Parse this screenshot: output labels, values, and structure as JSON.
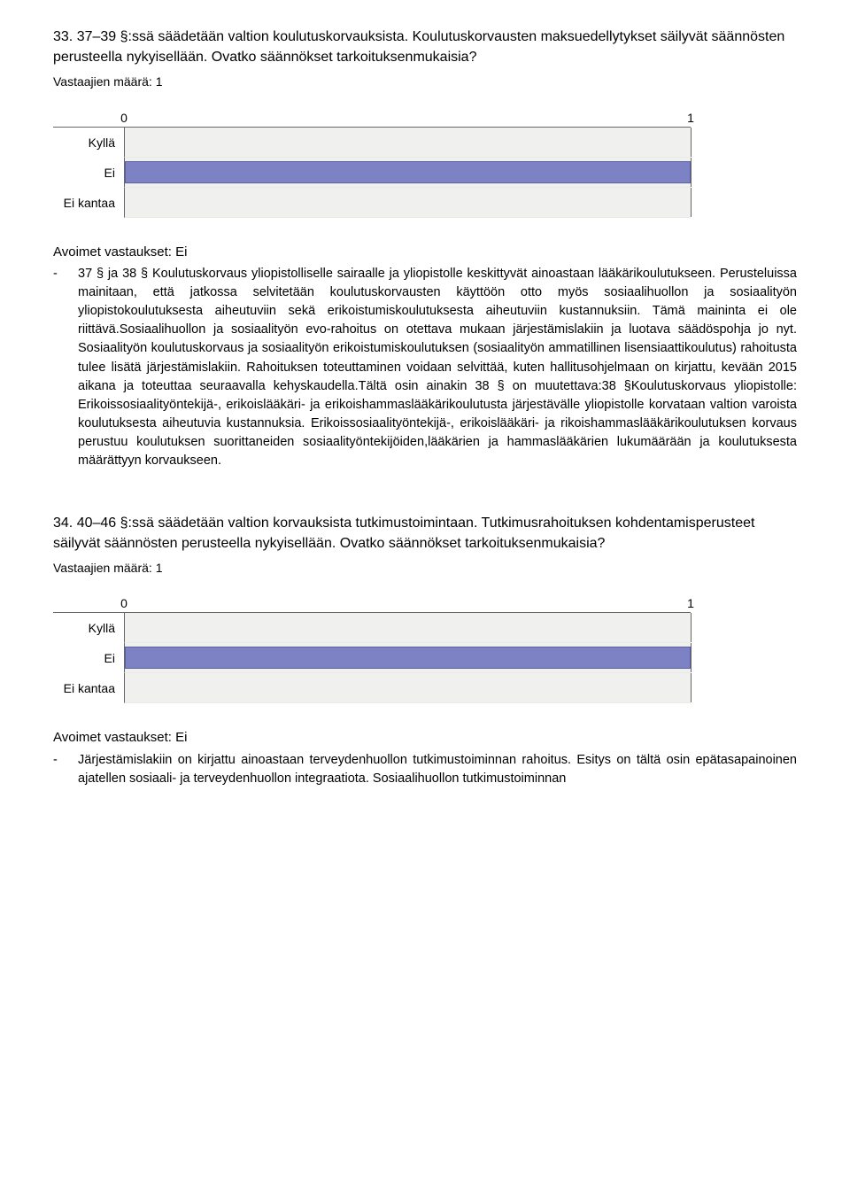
{
  "q33": {
    "title": "33. 37–39 §:ssä säädetään valtion koulutuskorvauksista. Koulutuskorvausten maksuedellytykset säilyvät säännösten perusteella nykyisellään. Ovatko säännökset tarkoituksenmukaisia?",
    "respondents": "Vastaajien määrä: 1",
    "chart": {
      "type": "bar",
      "categories": [
        "Kyllä",
        "Ei",
        "Ei kantaa"
      ],
      "values": [
        0,
        1,
        0
      ],
      "xlim": [
        0,
        1
      ],
      "xtick_labels": [
        "0",
        "1"
      ],
      "bar_color": "#7d82c4",
      "bar_border": "#5a5f9f",
      "track_color": "#f0f0ee",
      "axis_color": "#666666",
      "background_color": "#ffffff",
      "label_fontsize": 14
    },
    "open_heading": "Avoimet vastaukset: Ei",
    "open_bullet": "-",
    "open_text": "37 § ja 38 § Koulutuskorvaus yliopistolliselle sairaalle ja yliopistolle keskittyvät ainoastaan lääkärikoulutukseen. Perusteluissa mainitaan, että jatkossa selvitetään koulutuskorvausten käyttöön otto myös sosiaalihuollon ja sosiaalityön yliopistokoulutuksesta aiheutuviin sekä erikoistumiskoulutuksesta aiheutuviin kustannuksiin. Tämä maininta ei ole riittävä.Sosiaalihuollon ja sosiaalityön evo-rahoitus on otettava mukaan järjestämislakiin ja luotava säädöspohja jo nyt. Sosiaalityön koulutuskorvaus ja sosiaalityön erikoistumiskoulutuksen (sosiaalityön ammatillinen lisensiaattikoulutus) rahoitusta tulee lisätä järjestämislakiin. Rahoituksen toteuttaminen voidaan selvittää, kuten hallitusohjelmaan on kirjattu, kevään 2015 aikana ja toteuttaa seuraavalla kehyskaudella.Tältä osin ainakin 38 § on muutettava:38 §Koulutuskorvaus yliopistolle: Erikoissosiaalityöntekijä-, erikoislääkäri-  ja erikoishammaslääkärikoulutusta järjestävälle yliopistolle korvataan valtion  varoista  koulutuksesta  aiheutuvia kustannuksia. Erikoissosiaalityöntekijä-, erikoislääkäri-  ja  rikoishammaslääkärikoulutuksen  korvaus  perustuu koulutuksen  suorittaneiden sosiaalityöntekijöiden,lääkärien  ja hammaslääkärien  lukumäärään  ja koulutuksesta määrättyyn korvaukseen."
  },
  "q34": {
    "title": "34. 40–46 §:ssä säädetään valtion korvauksista tutkimustoimintaan. Tutkimusrahoituksen kohdentamisperusteet säilyvät säännösten perusteella nykyisellään. Ovatko säännökset tarkoituksenmukaisia?",
    "respondents": "Vastaajien määrä: 1",
    "chart": {
      "type": "bar",
      "categories": [
        "Kyllä",
        "Ei",
        "Ei kantaa"
      ],
      "values": [
        0,
        1,
        0
      ],
      "xlim": [
        0,
        1
      ],
      "xtick_labels": [
        "0",
        "1"
      ],
      "bar_color": "#7d82c4",
      "bar_border": "#5a5f9f",
      "track_color": "#f0f0ee",
      "axis_color": "#666666",
      "background_color": "#ffffff",
      "label_fontsize": 14
    },
    "open_heading": "Avoimet vastaukset: Ei",
    "open_bullet": "-",
    "open_text": "Järjestämislakiin on kirjattu ainoastaan terveydenhuollon tutkimustoiminnan rahoitus. Esitys on tältä osin epätasapainoinen ajatellen sosiaali- ja terveydenhuollon integraatiota. Sosiaalihuollon tutkimustoiminnan"
  }
}
